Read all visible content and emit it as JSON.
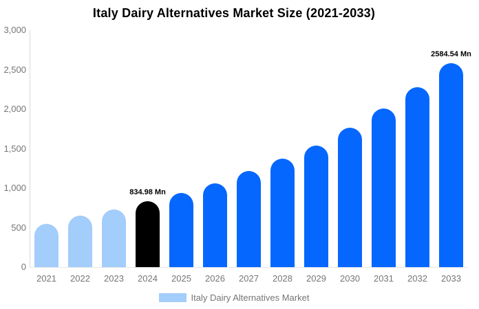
{
  "chart": {
    "title": "Italy Dairy Alternatives Market Size (2021-2033)"
  },
  "legend": {
    "label": "Italy Dairy Alternatives Market",
    "swatch_color": "#a3cdfa"
  },
  "colors": {
    "series_default": "#0667fe",
    "series_past": "#a3cdfa",
    "series_highlight": "#000000",
    "axis_text": "#757575",
    "axis_line": "#d9d9d9",
    "baseline": "#e6e6e6",
    "title_text": "#000000"
  },
  "chart_data": {
    "type": "bar",
    "title": "Italy Dairy Alternatives Market Size (2021-2033)",
    "xlabel": "",
    "ylabel": "",
    "categories": [
      "2021",
      "2022",
      "2023",
      "2024",
      "2025",
      "2026",
      "2027",
      "2028",
      "2029",
      "2030",
      "2031",
      "2032",
      "2033"
    ],
    "values": [
      550,
      648,
      727,
      834.98,
      940,
      1062,
      1214,
      1374,
      1540,
      1765,
      2006,
      2281,
      2584.54
    ],
    "bar_colors": [
      "#a3cdfa",
      "#a3cdfa",
      "#a3cdfa",
      "#000000",
      "#0667fe",
      "#0667fe",
      "#0667fe",
      "#0667fe",
      "#0667fe",
      "#0667fe",
      "#0667fe",
      "#0667fe",
      "#0667fe"
    ],
    "annotations": [
      {
        "category": "2024",
        "text": "834.98 Mn"
      },
      {
        "category": "2033",
        "text": "2584.54 Mn"
      }
    ],
    "ylim": [
      0,
      3000
    ],
    "ytick_values": [
      0,
      500,
      1000,
      1500,
      2000,
      2500,
      3000
    ],
    "ytick_labels": [
      "0",
      "500",
      "1,000",
      "1,500",
      "2,000",
      "2,500",
      "3,000"
    ],
    "grid": false,
    "legend_entries": [
      "Italy Dairy Alternatives Market"
    ],
    "legend_position": "bottom",
    "unit": "Mn"
  }
}
